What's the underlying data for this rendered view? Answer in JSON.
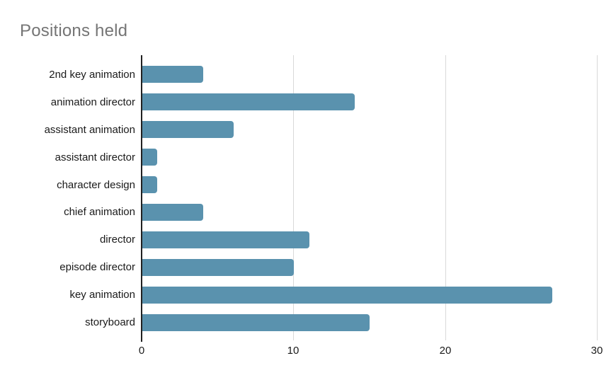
{
  "chart_data": {
    "type": "bar",
    "orientation": "horizontal",
    "title": "Positions held",
    "categories": [
      "2nd key animation",
      "animation director",
      "assistant animation",
      "assistant director",
      "character design",
      "chief animation",
      "director",
      "episode director",
      "key animation",
      "storyboard"
    ],
    "values": [
      4,
      14,
      6,
      1,
      1,
      4,
      11,
      10,
      27,
      15
    ],
    "xlabel": "",
    "ylabel": "",
    "xlim": [
      0,
      30.8
    ],
    "xticks": [
      0,
      10,
      20,
      30
    ],
    "grid": true,
    "legend": "none",
    "colors": {
      "bar": "#5a92ae",
      "title": "#757575",
      "axis_label": "#1a1a1a",
      "gridline": "#d9d9d9",
      "axis_line": "#212121",
      "background": "#ffffff"
    }
  }
}
